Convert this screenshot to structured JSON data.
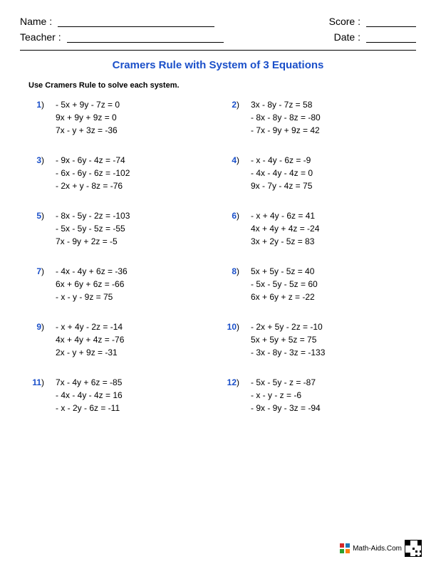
{
  "header": {
    "name_label": "Name :",
    "teacher_label": "Teacher :",
    "score_label": "Score :",
    "date_label": "Date :"
  },
  "title": {
    "text": "Cramers Rule with System of 3 Equations",
    "color": "#1a4fc9"
  },
  "instructions": "Use Cramers Rule to solve each system.",
  "number_color": "#1a4fc9",
  "problems": [
    {
      "n": "1",
      "eqs": [
        "- 5x + 9y - 7z = 0",
        "9x + 9y + 9z = 0",
        "7x - y + 3z = -36"
      ]
    },
    {
      "n": "2",
      "eqs": [
        "3x - 8y - 7z = 58",
        "- 8x - 8y - 8z = -80",
        "- 7x - 9y + 9z = 42"
      ]
    },
    {
      "n": "3",
      "eqs": [
        "- 9x - 6y - 4z = -74",
        "- 6x - 6y - 6z = -102",
        "- 2x + y - 8z = -76"
      ]
    },
    {
      "n": "4",
      "eqs": [
        "- x - 4y - 6z = -9",
        "- 4x - 4y - 4z = 0",
        "9x - 7y - 4z = 75"
      ]
    },
    {
      "n": "5",
      "eqs": [
        "- 8x - 5y - 2z = -103",
        "- 5x - 5y - 5z = -55",
        "7x - 9y + 2z = -5"
      ]
    },
    {
      "n": "6",
      "eqs": [
        "- x + 4y - 6z = 41",
        "4x + 4y + 4z = -24",
        "3x + 2y - 5z = 83"
      ]
    },
    {
      "n": "7",
      "eqs": [
        "- 4x - 4y + 6z = -36",
        "6x + 6y + 6z = -66",
        "- x - y - 9z = 75"
      ]
    },
    {
      "n": "8",
      "eqs": [
        "5x + 5y - 5z = 40",
        "- 5x - 5y - 5z = 60",
        "6x + 6y + z = -22"
      ]
    },
    {
      "n": "9",
      "eqs": [
        "- x + 4y - 2z = -14",
        "4x + 4y + 4z = -76",
        "2x - y + 9z = -31"
      ]
    },
    {
      "n": "10",
      "eqs": [
        "- 2x + 5y - 2z = -10",
        "5x + 5y + 5z = 75",
        "- 3x - 8y - 3z = -133"
      ]
    },
    {
      "n": "11",
      "eqs": [
        "7x - 4y + 6z = -85",
        "- 4x - 4y - 4z = 16",
        "- x - 2y - 6z = -11"
      ]
    },
    {
      "n": "12",
      "eqs": [
        "- 5x - 5y - z = -87",
        "- x - y - z = -6",
        "- 9x - 9y - 3z = -94"
      ]
    }
  ],
  "footer": {
    "site": "Math-Aids.Com"
  }
}
